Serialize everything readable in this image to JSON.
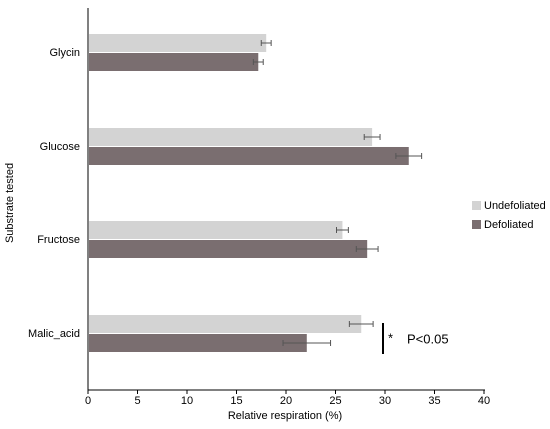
{
  "chart_data": {
    "type": "bar",
    "orientation": "horizontal",
    "title": "",
    "xlabel": "Relative  respiration (%)",
    "ylabel": "Substrate tested",
    "xlim": [
      0,
      40
    ],
    "xticks": [
      0,
      5,
      10,
      15,
      20,
      25,
      30,
      35,
      40
    ],
    "categories": [
      "Glycin",
      "Glucose",
      "Fructose",
      "Malic_acid"
    ],
    "series": [
      {
        "name": "Undefoliated",
        "color": "#d3d3d3",
        "values": [
          18.0,
          28.7,
          25.7,
          27.6
        ],
        "errors": [
          0.5,
          0.8,
          0.6,
          1.2
        ]
      },
      {
        "name": "Defoliated",
        "color": "#7a6e70",
        "values": [
          17.2,
          32.4,
          28.2,
          22.1
        ],
        "errors": [
          0.5,
          1.3,
          1.1,
          2.4
        ]
      }
    ],
    "legend_position": "right",
    "grid": false,
    "annotation": {
      "category": "Malic_acid",
      "star": "*",
      "text": "P<0.05"
    }
  }
}
